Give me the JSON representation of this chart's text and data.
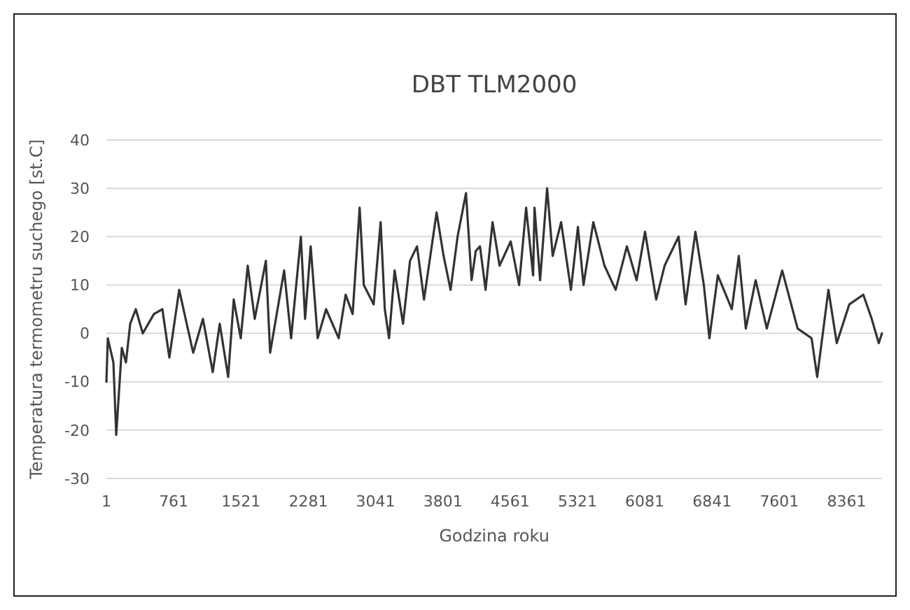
{
  "chart_data": {
    "type": "line",
    "title": "DBT TLM2000",
    "xlabel": "Godzina roku",
    "ylabel": "Temperatura termometru suchego [st.C]",
    "xlim": [
      1,
      8760
    ],
    "xticks": [
      1,
      761,
      1521,
      2281,
      3041,
      3801,
      4561,
      5321,
      6081,
      6841,
      7601,
      8361
    ],
    "ylim": [
      -30,
      40
    ],
    "yticks": [
      -30,
      -20,
      -10,
      0,
      10,
      20,
      30,
      40
    ],
    "grid": "y",
    "marker": "none",
    "line_style": "solid",
    "series": [
      {
        "color": "#333333",
        "x": [
          1,
          17,
          80,
          112,
          175,
          222,
          270,
          333,
          412,
          538,
          633,
          712,
          823,
          981,
          1091,
          1202,
          1281,
          1376,
          1439,
          1518,
          1597,
          1676,
          1802,
          1850,
          2008,
          2087,
          2197,
          2245,
          2308,
          2387,
          2482,
          2624,
          2703,
          2782,
          2861,
          2908,
          3019,
          3098,
          3145,
          3193,
          3256,
          3351,
          3430,
          3509,
          3588,
          3730,
          3809,
          3888,
          3967,
          4062,
          4125,
          4172,
          4220,
          4283,
          4362,
          4441,
          4567,
          4662,
          4741,
          4820,
          4836,
          4899,
          4978,
          5041,
          5136,
          5247,
          5326,
          5389,
          5500,
          5626,
          5752,
          5879,
          5989,
          6084,
          6210,
          6305,
          6463,
          6542,
          6653,
          6748,
          6811,
          6906,
          7064,
          7143,
          7222,
          7333,
          7459,
          7633,
          7807,
          7965,
          8028,
          8155,
          8249,
          8391,
          8549,
          8644,
          8723,
          8760
        ],
        "values": [
          -10,
          -1,
          -6,
          -21,
          -3,
          -6,
          2,
          5,
          0,
          4,
          5,
          -5,
          9,
          -4,
          3,
          -8,
          2,
          -9,
          7,
          -1,
          14,
          3,
          15,
          -4,
          13,
          -1,
          20,
          3,
          18,
          -1,
          5,
          -1,
          8,
          4,
          26,
          10,
          6,
          23,
          5,
          -1,
          13,
          2,
          15,
          18,
          7,
          25,
          16,
          9,
          20,
          29,
          11,
          17,
          18,
          9,
          23,
          14,
          19,
          10,
          26,
          12,
          26,
          11,
          30,
          16,
          23,
          9,
          22,
          10,
          23,
          14,
          9,
          18,
          11,
          21,
          7,
          14,
          20,
          6,
          21,
          10,
          -1,
          12,
          5,
          16,
          1,
          11,
          1,
          13,
          1,
          -1,
          -9,
          9,
          -2,
          6,
          8,
          3,
          -2,
          0
        ]
      }
    ]
  }
}
